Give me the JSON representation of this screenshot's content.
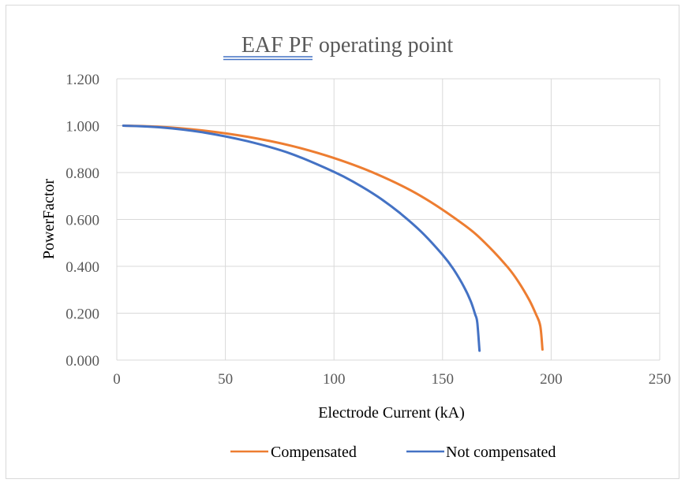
{
  "chart_data": {
    "type": "line",
    "title": "EAF  PF operating point",
    "xlabel": "Electrode Current (kA)",
    "ylabel": "PowerFactor",
    "xlim": [
      0,
      250
    ],
    "ylim": [
      0,
      1.2
    ],
    "xticks": [
      0,
      50,
      100,
      150,
      200,
      250
    ],
    "yticks": [
      0,
      0.2,
      0.4,
      0.6,
      0.8,
      1.0,
      1.2
    ],
    "xtick_labels": [
      "0",
      "50",
      "100",
      "150",
      "200",
      "250"
    ],
    "ytick_labels": [
      "0.000",
      "0.200",
      "0.400",
      "0.600",
      "0.800",
      "1.000",
      "1.200"
    ],
    "grid": true,
    "legend_position": "bottom",
    "series": [
      {
        "name": "Compensated",
        "color": "#ed7d31",
        "x": [
          3,
          20,
          40,
          60,
          80,
          100,
          120,
          140,
          160,
          170,
          180,
          185,
          190,
          193,
          195,
          196
        ],
        "y": [
          1.0,
          0.995,
          0.979,
          0.953,
          0.915,
          0.862,
          0.792,
          0.7,
          0.576,
          0.496,
          0.396,
          0.333,
          0.255,
          0.196,
          0.146,
          0.045
        ]
      },
      {
        "name": "Not compensated",
        "color": "#4472c4",
        "x": [
          3,
          20,
          40,
          60,
          80,
          100,
          110,
          120,
          130,
          140,
          150,
          155,
          160,
          163,
          165,
          166,
          167
        ],
        "y": [
          1.0,
          0.993,
          0.971,
          0.934,
          0.881,
          0.803,
          0.755,
          0.698,
          0.63,
          0.549,
          0.449,
          0.388,
          0.31,
          0.25,
          0.195,
          0.16,
          0.04
        ]
      }
    ]
  }
}
